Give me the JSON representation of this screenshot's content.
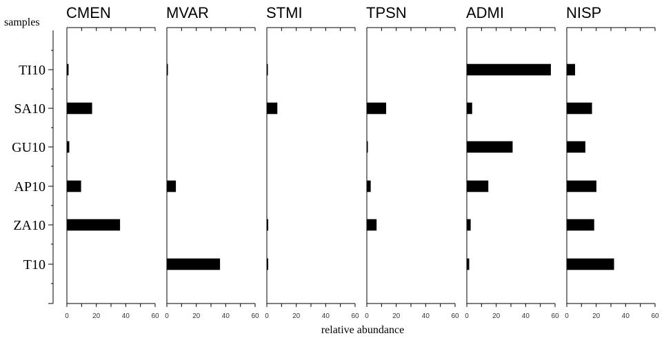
{
  "chart_data": {
    "type": "bar",
    "orientation": "horizontal",
    "ylabel": "samples",
    "xlabel": "relative abundance",
    "xlim": [
      0,
      60
    ],
    "x_ticks": [
      0,
      20,
      40,
      60
    ],
    "categories": [
      "TI10",
      "SA10",
      "GU10",
      "AP10",
      "ZA10",
      "T10"
    ],
    "series": [
      {
        "name": "CMEN",
        "values": [
          1,
          17,
          1.5,
          9.5,
          36,
          0
        ]
      },
      {
        "name": "MVAR",
        "values": [
          0.3,
          0,
          0,
          6,
          0,
          36
        ]
      },
      {
        "name": "STMI",
        "values": [
          0.3,
          7,
          0,
          0,
          0.8,
          0.8
        ]
      },
      {
        "name": "TPSN",
        "values": [
          0,
          13,
          0.3,
          2.5,
          6.5,
          0
        ]
      },
      {
        "name": "ADMI",
        "values": [
          57,
          3.5,
          31,
          14.5,
          2.5,
          1.5
        ]
      },
      {
        "name": "NISP",
        "values": [
          5.5,
          17,
          12.5,
          20,
          18.5,
          32
        ]
      }
    ]
  }
}
